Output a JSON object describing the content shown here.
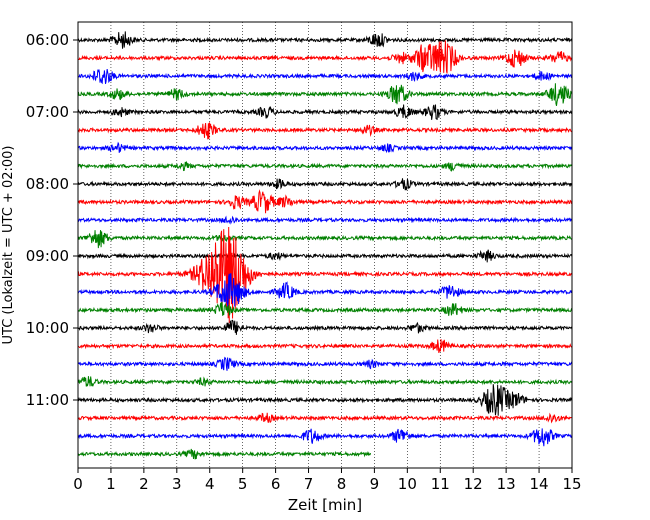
{
  "chart_data": {
    "type": "line",
    "title": "",
    "xlabel": "Zeit  [min]",
    "ylabel": "UTC (Lokalzeit = UTC + 02:00)",
    "xlim": [
      0,
      15
    ],
    "x_ticks": [
      0,
      1,
      2,
      3,
      4,
      5,
      6,
      7,
      8,
      9,
      10,
      11,
      12,
      13,
      14,
      15
    ],
    "y_tick_labels": [
      "06:00",
      "07:00",
      "08:00",
      "09:00",
      "10:00",
      "11:00"
    ],
    "grid": "vertical dotted lines at each minute",
    "legend": "none",
    "color_cycle": [
      "#000000",
      "#ff0000",
      "#0000ff",
      "#008000"
    ],
    "series": [
      {
        "start": "06:00",
        "end_min": 15,
        "events": [
          [
            1.35,
            8
          ],
          [
            9.1,
            7
          ]
        ]
      },
      {
        "start": "06:15",
        "end_min": 15,
        "events": [
          [
            9.8,
            5
          ],
          [
            10.5,
            12
          ],
          [
            11.0,
            14
          ],
          [
            11.3,
            7
          ],
          [
            13.3,
            9
          ],
          [
            14.6,
            6
          ]
        ]
      },
      {
        "start": "06:30",
        "end_min": 15,
        "events": [
          [
            0.75,
            9
          ],
          [
            10.2,
            4
          ],
          [
            14.1,
            4
          ]
        ]
      },
      {
        "start": "06:45",
        "end_min": 15,
        "events": [
          [
            1.2,
            5
          ],
          [
            3.0,
            5
          ],
          [
            9.7,
            10
          ],
          [
            14.6,
            11
          ]
        ]
      },
      {
        "start": "07:00",
        "end_min": 15,
        "events": [
          [
            1.3,
            4
          ],
          [
            5.7,
            5
          ],
          [
            9.9,
            6
          ],
          [
            10.8,
            7
          ]
        ]
      },
      {
        "start": "07:15",
        "end_min": 15,
        "events": [
          [
            3.9,
            8
          ],
          [
            8.8,
            4
          ]
        ]
      },
      {
        "start": "07:30",
        "end_min": 15,
        "events": [
          [
            1.2,
            4
          ],
          [
            9.4,
            3
          ]
        ]
      },
      {
        "start": "07:45",
        "end_min": 15,
        "events": [
          [
            3.2,
            3
          ],
          [
            11.4,
            4
          ]
        ]
      },
      {
        "start": "08:00",
        "end_min": 15,
        "events": [
          [
            6.1,
            4
          ],
          [
            9.9,
            5
          ]
        ]
      },
      {
        "start": "08:15",
        "end_min": 15,
        "events": [
          [
            4.8,
            6
          ],
          [
            5.6,
            11
          ],
          [
            6.3,
            5
          ]
        ]
      },
      {
        "start": "08:30",
        "end_min": 15,
        "events": [
          [
            4.6,
            3
          ]
        ]
      },
      {
        "start": "08:45",
        "end_min": 15,
        "events": [
          [
            0.6,
            9
          ],
          [
            4.4,
            3
          ]
        ]
      },
      {
        "start": "09:00",
        "end_min": 15,
        "events": [
          [
            6.0,
            3
          ],
          [
            12.4,
            5
          ]
        ]
      },
      {
        "start": "09:15",
        "end_min": 15,
        "events": [
          [
            4.4,
            40
          ],
          [
            4.75,
            14
          ]
        ]
      },
      {
        "start": "09:30",
        "end_min": 15,
        "events": [
          [
            4.6,
            18
          ],
          [
            6.3,
            8
          ],
          [
            11.3,
            7
          ]
        ]
      },
      {
        "start": "09:45",
        "end_min": 15,
        "events": [
          [
            4.4,
            7
          ],
          [
            11.4,
            6
          ]
        ]
      },
      {
        "start": "10:00",
        "end_min": 15,
        "events": [
          [
            2.2,
            4
          ],
          [
            4.7,
            7
          ],
          [
            10.3,
            4
          ]
        ]
      },
      {
        "start": "10:15",
        "end_min": 15,
        "events": [
          [
            11.0,
            6
          ]
        ]
      },
      {
        "start": "10:30",
        "end_min": 15,
        "events": [
          [
            4.5,
            6
          ],
          [
            8.9,
            3
          ]
        ]
      },
      {
        "start": "10:45",
        "end_min": 15,
        "events": [
          [
            0.3,
            5
          ],
          [
            3.8,
            3
          ]
        ]
      },
      {
        "start": "11:00",
        "end_min": 15,
        "events": [
          [
            12.5,
            8
          ],
          [
            12.8,
            12
          ],
          [
            13.3,
            6
          ]
        ]
      },
      {
        "start": "11:15",
        "end_min": 15,
        "events": [
          [
            5.7,
            4
          ],
          [
            14.4,
            4
          ]
        ]
      },
      {
        "start": "11:30",
        "end_min": 15,
        "events": [
          [
            7.1,
            7
          ],
          [
            9.8,
            7
          ],
          [
            14.1,
            10
          ]
        ]
      },
      {
        "start": "11:45",
        "end_min": 8.9,
        "events": [
          [
            3.5,
            4
          ]
        ]
      }
    ]
  }
}
